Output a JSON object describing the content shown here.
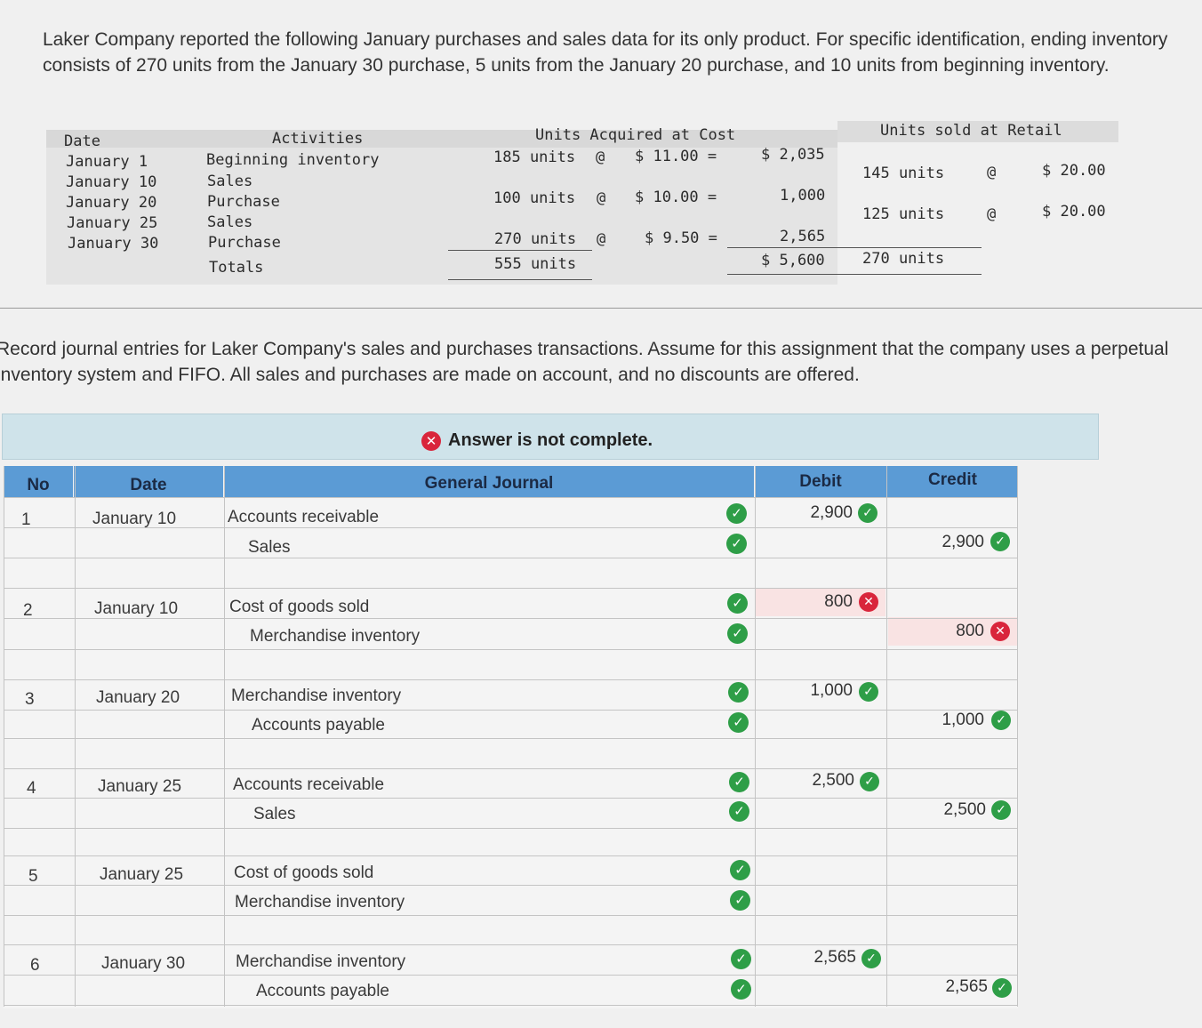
{
  "intro_text": "Laker Company reported the following January purchases and sales data for its only product. For specific identification, ending inventory consists of 270 units from the January 30 purchase, 5 units from the January 20 purchase, and 10 units from beginning inventory.",
  "data_table": {
    "headers": {
      "date": "Date",
      "activities": "Activities",
      "units_acquired": "Units Acquired at Cost",
      "units_sold": "Units sold at Retail"
    },
    "rows": [
      {
        "date": "January 1",
        "activity": "Beginning inventory",
        "acq_units": "185 units",
        "acq_at": "@",
        "acq_cost": "$ 11.00 =",
        "acq_total": "$ 2,035",
        "sold_units": "",
        "sold_at": "",
        "sold_price": ""
      },
      {
        "date": "January 10",
        "activity": "Sales",
        "acq_units": "",
        "acq_at": "",
        "acq_cost": "",
        "acq_total": "",
        "sold_units": "145 units",
        "sold_at": "@",
        "sold_price": "$ 20.00"
      },
      {
        "date": "January 20",
        "activity": "Purchase",
        "acq_units": "100 units",
        "acq_at": "@",
        "acq_cost": "$ 10.00 =",
        "acq_total": "1,000",
        "sold_units": "",
        "sold_at": "",
        "sold_price": ""
      },
      {
        "date": "January 25",
        "activity": "Sales",
        "acq_units": "",
        "acq_at": "",
        "acq_cost": "",
        "acq_total": "",
        "sold_units": "125 units",
        "sold_at": "@",
        "sold_price": "$ 20.00"
      },
      {
        "date": "January 30",
        "activity": "Purchase",
        "acq_units": "270 units",
        "acq_at": "@",
        "acq_cost": "$ 9.50 =",
        "acq_total": "2,565",
        "sold_units": "",
        "sold_at": "",
        "sold_price": ""
      }
    ],
    "totals": {
      "label": "Totals",
      "acq_units": "555 units",
      "acq_total": "$ 5,600",
      "sold_units": "270 units"
    }
  },
  "instructions": "Record journal entries for Laker Company's sales and purchases transactions. Assume for this assignment that the company uses a perpetual inventory system and FIFO. All sales and purchases are made on account, and no discounts are offered.",
  "status": {
    "text": "Answer is not complete.",
    "icon": "x-circle-icon"
  },
  "journal": {
    "headers": {
      "no": "No",
      "date": "Date",
      "general_journal": "General Journal",
      "debit": "Debit",
      "credit": "Credit"
    },
    "entries": [
      {
        "no": "1",
        "date": "January 10",
        "lines": [
          {
            "account": "Accounts receivable",
            "debit": "2,900",
            "debit_status": "correct",
            "credit": "",
            "credit_status": ""
          },
          {
            "account": "Sales",
            "debit": "",
            "debit_status": "",
            "credit": "2,900",
            "credit_status": "correct"
          }
        ]
      },
      {
        "no": "2",
        "date": "January 10",
        "lines": [
          {
            "account": "Cost of goods sold",
            "debit": "800",
            "debit_status": "incorrect",
            "credit": "",
            "credit_status": ""
          },
          {
            "account": "Merchandise inventory",
            "debit": "",
            "debit_status": "",
            "credit": "800",
            "credit_status": "incorrect"
          }
        ]
      },
      {
        "no": "3",
        "date": "January 20",
        "lines": [
          {
            "account": "Merchandise inventory",
            "debit": "1,000",
            "debit_status": "correct",
            "credit": "",
            "credit_status": ""
          },
          {
            "account": "Accounts payable",
            "debit": "",
            "debit_status": "",
            "credit": "1,000",
            "credit_status": "correct"
          }
        ]
      },
      {
        "no": "4",
        "date": "January 25",
        "lines": [
          {
            "account": "Accounts receivable",
            "debit": "2,500",
            "debit_status": "correct",
            "credit": "",
            "credit_status": ""
          },
          {
            "account": "Sales",
            "debit": "",
            "debit_status": "",
            "credit": "2,500",
            "credit_status": "correct"
          }
        ]
      },
      {
        "no": "5",
        "date": "January 25",
        "lines": [
          {
            "account": "Cost of goods sold",
            "debit": "",
            "debit_status": "",
            "credit": "",
            "credit_status": ""
          },
          {
            "account": "Merchandise inventory",
            "debit": "",
            "debit_status": "",
            "credit": "",
            "credit_status": ""
          }
        ]
      },
      {
        "no": "6",
        "date": "January 30",
        "lines": [
          {
            "account": "Merchandise inventory",
            "debit": "2,565",
            "debit_status": "correct",
            "credit": "",
            "credit_status": ""
          },
          {
            "account": "Accounts payable",
            "debit": "",
            "debit_status": "",
            "credit": "2,565",
            "credit_status": "correct"
          }
        ]
      }
    ]
  }
}
